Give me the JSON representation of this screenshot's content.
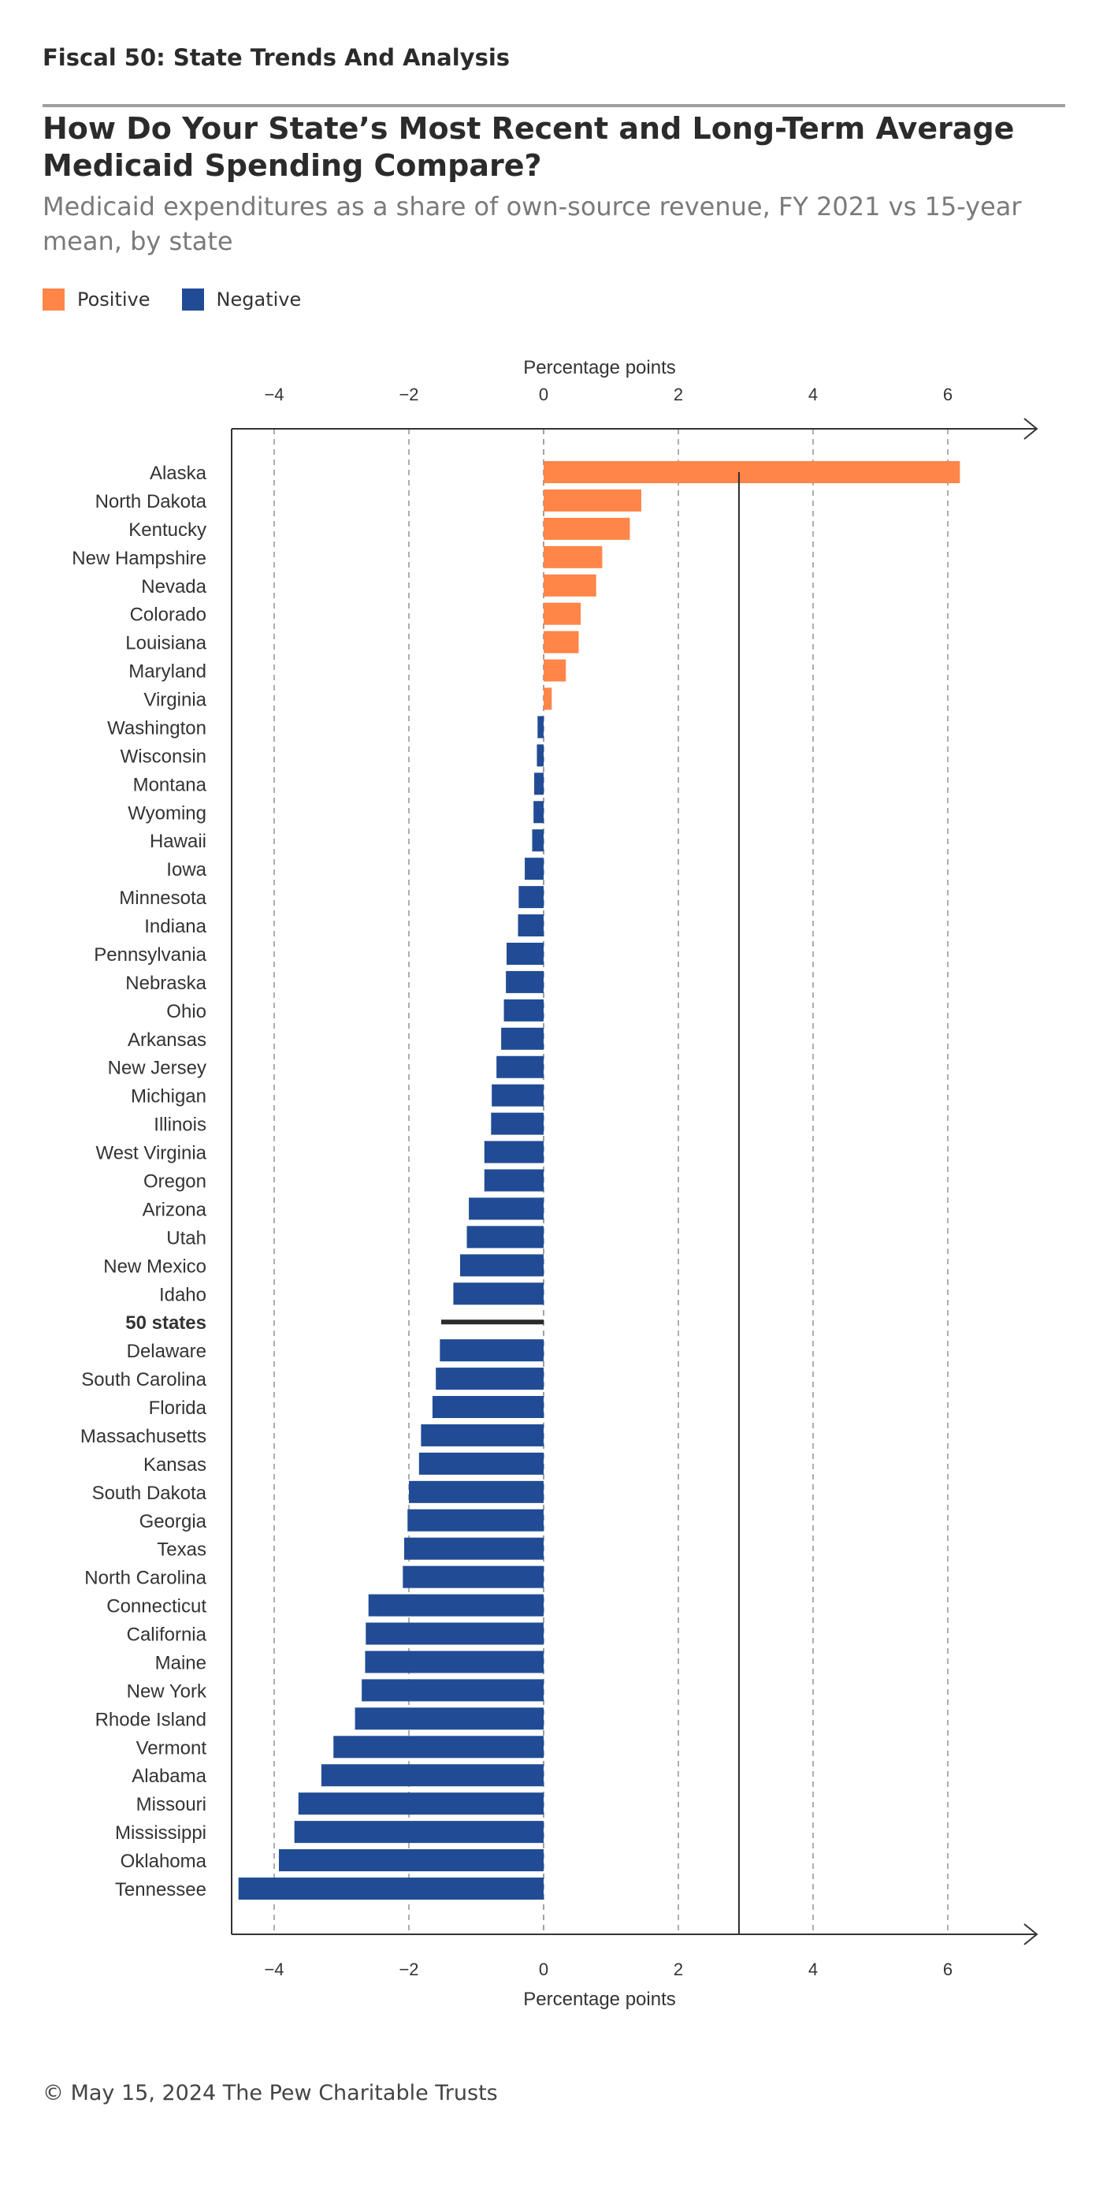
{
  "header": {
    "kicker": "Fiscal 50: State Trends And Analysis",
    "title": "How Do Your State’s Most Recent and Long-Term Average Medicaid Spending Compare?",
    "subtitle": "Medicaid expenditures as a share of own-source revenue, FY 2021 vs 15-year mean, by state"
  },
  "legend": {
    "positive_label": "Positive",
    "negative_label": "Negative",
    "positive_color": "#ff8548",
    "negative_color": "#214c95"
  },
  "footer": {
    "text": "© May 15, 2024 The Pew Charitable Trusts"
  },
  "chart_data": {
    "type": "bar",
    "orientation": "horizontal",
    "xlabel": "Percentage points",
    "xlim": [
      -4.6,
      7.2
    ],
    "xticks": [
      -4,
      -2,
      0,
      2,
      4,
      6
    ],
    "xtick_labels": [
      "−4",
      "−2",
      "0",
      "2",
      "4",
      "6"
    ],
    "grid": "dashed vertical lines",
    "colors": {
      "positive": "#ff8548",
      "negative": "#214c95",
      "average": "#2b2b2b",
      "marker_line": "#2b2b2b"
    },
    "marker_line_x": 2.9,
    "categories": [
      "Alaska",
      "North Dakota",
      "Kentucky",
      "New Hampshire",
      "Nevada",
      "Colorado",
      "Louisiana",
      "Maryland",
      "Virginia",
      "Washington",
      "Wisconsin",
      "Montana",
      "Wyoming",
      "Hawaii",
      "Iowa",
      "Minnesota",
      "Indiana",
      "Pennsylvania",
      "Nebraska",
      "Ohio",
      "Arkansas",
      "New Jersey",
      "Michigan",
      "Illinois",
      "West Virginia",
      "Oregon",
      "Arizona",
      "Utah",
      "New Mexico",
      "Idaho",
      "50 states",
      "Delaware",
      "South Carolina",
      "Florida",
      "Massachusetts",
      "Kansas",
      "South Dakota",
      "Georgia",
      "Texas",
      "North Carolina",
      "Connecticut",
      "California",
      "Maine",
      "New York",
      "Rhode Island",
      "Vermont",
      "Alabama",
      "Missouri",
      "Mississippi",
      "Oklahoma",
      "Tennessee"
    ],
    "values": [
      6.18,
      1.45,
      1.28,
      0.87,
      0.78,
      0.55,
      0.52,
      0.33,
      0.12,
      -0.09,
      -0.1,
      -0.14,
      -0.15,
      -0.17,
      -0.28,
      -0.37,
      -0.38,
      -0.55,
      -0.56,
      -0.59,
      -0.63,
      -0.7,
      -0.77,
      -0.78,
      -0.88,
      -0.88,
      -1.11,
      -1.14,
      -1.24,
      -1.34,
      -1.52,
      -1.54,
      -1.6,
      -1.65,
      -1.82,
      -1.85,
      -2.0,
      -2.02,
      -2.07,
      -2.09,
      -2.6,
      -2.64,
      -2.65,
      -2.7,
      -2.8,
      -3.12,
      -3.3,
      -3.64,
      -3.7,
      -3.93,
      -4.53
    ],
    "highlight_category": "50 states"
  }
}
